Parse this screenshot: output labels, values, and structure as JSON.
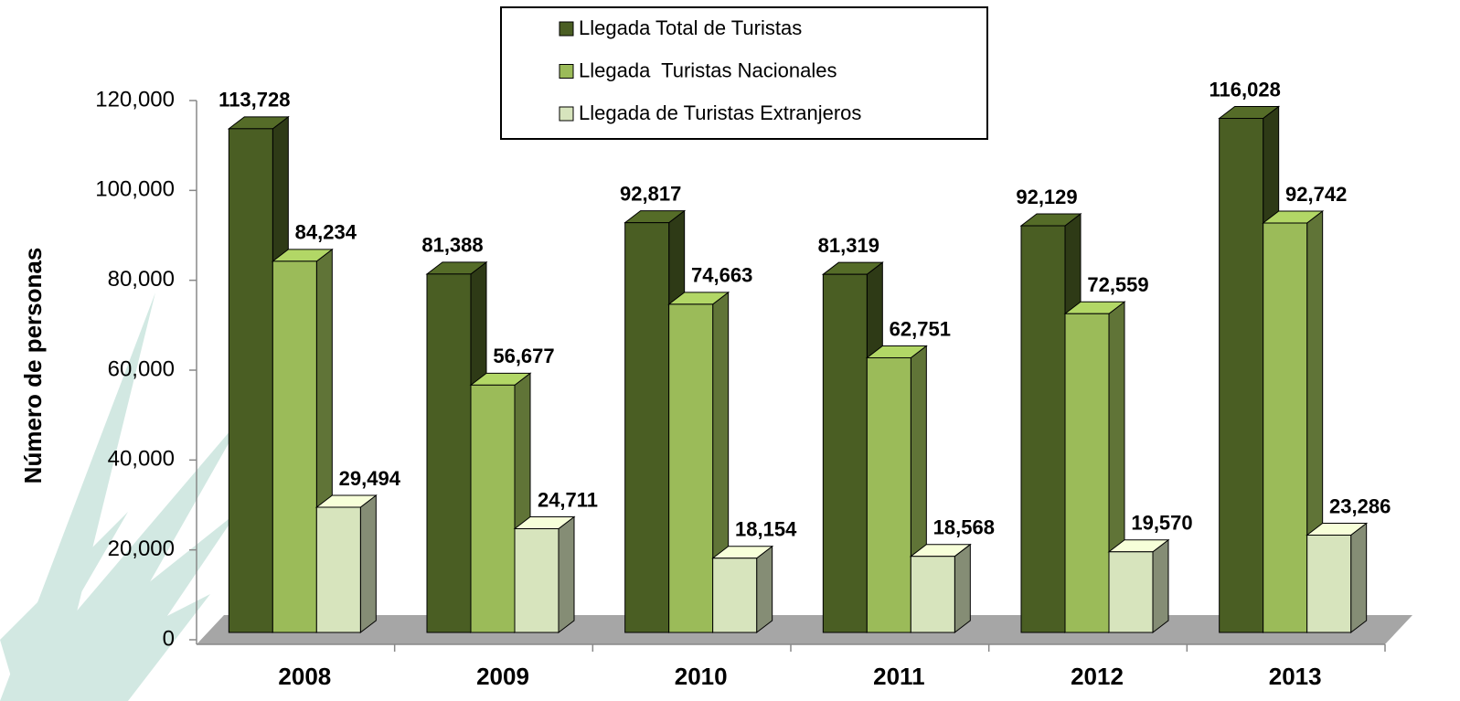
{
  "chart_data": {
    "type": "bar3d",
    "y_label": "Número de personas",
    "categories": [
      "2008",
      "2009",
      "2010",
      "2011",
      "2012",
      "2013"
    ],
    "series": [
      {
        "name": "Llegada Total de Turistas",
        "color": "#4a5e23",
        "values": [
          113728,
          81388,
          92817,
          81319,
          92129,
          116028
        ],
        "value_labels": [
          "113,728",
          "81,388",
          "92,817",
          "81,319",
          "92,129",
          "116,028"
        ]
      },
      {
        "name": "Llegada  Turistas Nacionales",
        "color": "#9bbb59",
        "values": [
          84234,
          56677,
          74663,
          62751,
          72559,
          92742
        ],
        "value_labels": [
          "84,234",
          "56,677",
          "74,663",
          "62,751",
          "72,559",
          "92,742"
        ]
      },
      {
        "name": "Llegada de Turistas Extranjeros",
        "color": "#d7e4bd",
        "values": [
          29494,
          24711,
          18154,
          18568,
          19570,
          23286
        ],
        "value_labels": [
          "29,494",
          "24,711",
          "18,154",
          "18,568",
          "19,570",
          "23,286"
        ]
      }
    ],
    "ylim": [
      0,
      120000
    ],
    "yticks": [
      0,
      {
        "value": 20000,
        "label": "20,000"
      },
      {
        "value": 40000,
        "label": "40,000"
      },
      {
        "value": 60000,
        "label": "60,000"
      },
      {
        "value": 80000,
        "label": "80,000"
      },
      {
        "value": 100000,
        "label": "100,000"
      },
      {
        "value": 120000,
        "label": "120,000"
      }
    ],
    "legend": "top"
  }
}
